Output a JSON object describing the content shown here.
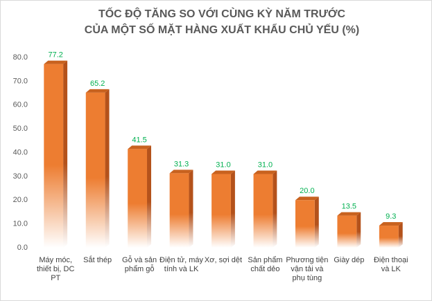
{
  "chart_data": {
    "type": "bar3d",
    "title": [
      "TỐC ĐỘ TĂNG SO VỚI CÙNG KỲ NĂM TRƯỚC",
      "CỦA MỘT SỐ MẶT HÀNG XUẤT KHẨU CHỦ YẾU (%)"
    ],
    "categories": [
      "Máy móc, thiết bị, DC PT",
      "Sắt thép",
      "Gỗ và sản phẩm gỗ",
      "Điện tử, máy tính và LK",
      "Xơ, sợi dệt",
      "Sản phẩm chất dẻo",
      "Phương tiện vận tải và phụ tùng",
      "Giày dép",
      "Điện thoại và LK"
    ],
    "values": [
      77.2,
      65.2,
      41.5,
      31.3,
      31.0,
      31.0,
      20.0,
      13.5,
      9.3
    ],
    "value_labels": [
      "77.2",
      "65.2",
      "41.5",
      "31.3",
      "31.0",
      "31.0",
      "20.0",
      "13.5",
      "9.3"
    ],
    "color": "#ed7d31",
    "side_color": "#b4521b",
    "label_color": "#00b050",
    "ylim": [
      0,
      80
    ],
    "yticks": [
      {
        "value": 0,
        "label": "0.0"
      },
      {
        "value": 10,
        "label": "10.0"
      },
      {
        "value": 20,
        "label": "20.0"
      },
      {
        "value": 30,
        "label": "30.0"
      },
      {
        "value": 40,
        "label": "40.0"
      },
      {
        "value": 50,
        "label": "50.0"
      },
      {
        "value": 60,
        "label": "60.0"
      },
      {
        "value": 70,
        "label": "70.0"
      },
      {
        "value": 80,
        "label": "80.0"
      }
    ]
  }
}
